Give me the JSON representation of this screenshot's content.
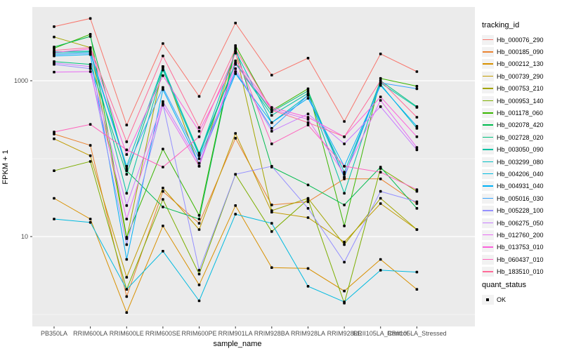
{
  "chart_data": {
    "type": "line",
    "title": "",
    "xlabel": "sample_name",
    "ylabel": "FPKM + 1",
    "y_scale": "log10",
    "y_tick_labels": [
      "10",
      "1000"
    ],
    "y_tick_values": [
      10,
      1000
    ],
    "y_gridline_values": [
      1,
      10,
      100,
      1000
    ],
    "ylim_log10": [
      -0.15,
      3.95
    ],
    "grid": "on",
    "legend_position": "right",
    "legend_title": "tracking_id",
    "panel_bg": "#EBEBEB",
    "grid_color": "#FFFFFF",
    "tick_label_color": "#4D4D4D",
    "point_color": "#000000",
    "categories": [
      "PB350LA",
      "RRIM600LA",
      "RRIM600LE",
      "RRIM600SE",
      "RRIM600PE",
      "RRIM901LA",
      "RRIM928BA",
      "RRIM928LA",
      "RRIM928LE",
      "RRII105LA_Control",
      "RRII105LA_Stressed"
    ],
    "series": [
      {
        "name": "Hb_000076_290",
        "color": "#F8766D",
        "values": [
          4950,
          6300,
          270,
          3000,
          630,
          5500,
          1180,
          1950,
          300,
          2210,
          1310
        ]
      },
      {
        "name": "Hb_000185_090",
        "color": "#EA8331",
        "values": [
          207,
          148,
          1.7,
          38,
          14.8,
          183,
          25.5,
          28,
          55,
          55,
          26.5
        ]
      },
      {
        "name": "Hb_000212_130",
        "color": "#D89000",
        "values": [
          31,
          16.8,
          1.06,
          13.7,
          2.4,
          25,
          4.0,
          3.9,
          2.0,
          5.1,
          2.1
        ]
      },
      {
        "name": "Hb_000739_290",
        "color": "#C09B00",
        "values": [
          180,
          109,
          3.0,
          42,
          12.3,
          211,
          20.6,
          17.5,
          8.5,
          26.5,
          12.3
        ]
      },
      {
        "name": "Hb_000753_210",
        "color": "#A3A500",
        "values": [
          3640,
          2660,
          9.4,
          1520,
          80,
          2400,
          21.5,
          31,
          7.9,
          31,
          12.3
        ]
      },
      {
        "name": "Hb_000953_140",
        "color": "#7CAE00",
        "values": [
          70,
          92,
          2.1,
          30,
          3.3,
          63,
          11.6,
          30,
          1.4,
          75,
          38
        ]
      },
      {
        "name": "Hb_001178_060",
        "color": "#39B600",
        "values": [
          2610,
          3950,
          9.8,
          133,
          18.7,
          2830,
          415,
          790,
          13.7,
          1070,
          850
        ]
      },
      {
        "name": "Hb_002078_420",
        "color": "#00BB4E",
        "values": [
          2710,
          3700,
          70,
          24,
          16.8,
          2660,
          78,
          46,
          25.5,
          78,
          23
        ]
      },
      {
        "name": "Hb_002728_020",
        "color": "#00BF7D",
        "values": [
          1760,
          1620,
          63,
          1460,
          118,
          1690,
          400,
          740,
          58,
          1000,
          465
        ]
      },
      {
        "name": "Hb_003050_090",
        "color": "#00C1A3",
        "values": [
          2350,
          2400,
          36,
          1370,
          109,
          1690,
          360,
          690,
          36,
          940,
          455
        ]
      },
      {
        "name": "Hb_003299_080",
        "color": "#00BFC4",
        "values": [
          2260,
          2350,
          80,
          1520,
          113,
          2400,
          290,
          650,
          67,
          900,
          245
        ]
      },
      {
        "name": "Hb_004206_040",
        "color": "#00BAE0",
        "values": [
          16.8,
          15.2,
          2.1,
          6.5,
          1.5,
          19.4,
          14.8,
          2.3,
          1.45,
          3.7,
          3.5
        ]
      },
      {
        "name": "Hb_004931_040",
        "color": "#00B0F6",
        "values": [
          2080,
          2170,
          5.1,
          770,
          87,
          1230,
          290,
          595,
          80,
          870,
          260
        ]
      },
      {
        "name": "Hb_005016_030",
        "color": "#35A2FF",
        "values": [
          2170,
          2260,
          75,
          820,
          100,
          1310,
          245,
          650,
          58,
          940,
          790
        ]
      },
      {
        "name": "Hb_005228_100",
        "color": "#9590FF",
        "values": [
          1620,
          1430,
          7.9,
          505,
          3.7,
          63,
          80,
          23,
          4.7,
          38,
          28
        ]
      },
      {
        "name": "Hb_006275_050",
        "color": "#C77CFF",
        "values": [
          1690,
          1520,
          25,
          540,
          87,
          1430,
          225,
          375,
          155,
          465,
          130
        ]
      },
      {
        "name": "Hb_012760_200",
        "color": "#E76BF3",
        "values": [
          1290,
          1310,
          16.8,
          485,
          80,
          1620,
          430,
          320,
          63,
          560,
          139
        ]
      },
      {
        "name": "Hb_013753_010",
        "color": "#FA62DB",
        "values": [
          2300,
          2560,
          113,
          1160,
          225,
          1800,
          455,
          340,
          191,
          620,
          191
        ]
      },
      {
        "name": "Hb_060437_010",
        "color": "#FF62BC",
        "values": [
          220,
          275,
          130,
          78,
          191,
          2260,
          155,
          270,
          80,
          67,
          40
        ]
      },
      {
        "name": "Hb_183510_010",
        "color": "#FF6A98",
        "values": [
          2450,
          2660,
          165,
          2080,
          250,
          2560,
          420,
          290,
          191,
          1000,
          340
        ]
      }
    ],
    "quant_legend": {
      "title": "quant_status",
      "items": [
        "OK"
      ]
    }
  }
}
